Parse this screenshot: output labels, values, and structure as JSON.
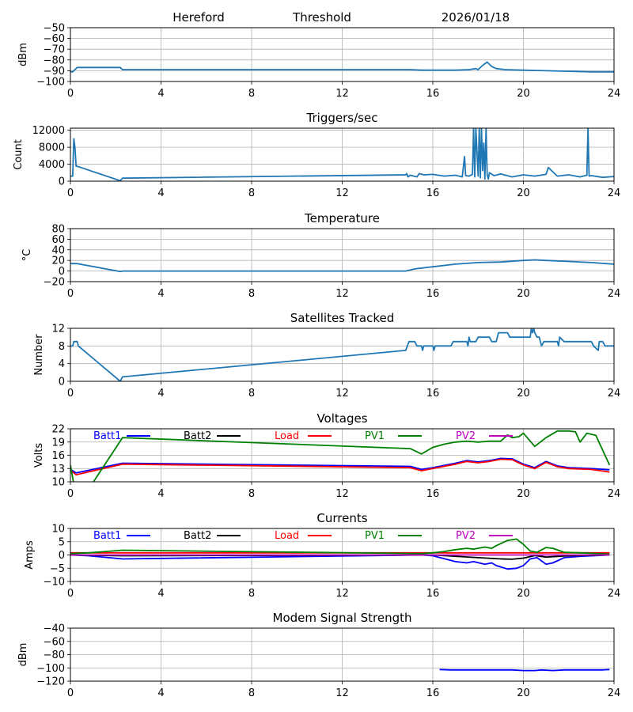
{
  "header": {
    "station": "Hereford",
    "report": "Threshold",
    "date": "2026/01/18"
  },
  "chart_data": [
    {
      "id": "threshold",
      "type": "line",
      "title": "",
      "xlabel": "",
      "ylabel": "dBm",
      "xlim": [
        0,
        24
      ],
      "ylim": [
        -100,
        -50
      ],
      "xticks": [
        0,
        4,
        8,
        12,
        16,
        20,
        24
      ],
      "yticks": [
        -100,
        -90,
        -80,
        -70,
        -60,
        -50
      ],
      "ytick_labels": [
        "−100",
        "−90",
        "−80",
        "−70",
        "−60",
        "−50"
      ],
      "grid": true,
      "series": [
        {
          "name": "Threshold",
          "color": "#1f77b4",
          "x": [
            0,
            0.1,
            0.2,
            0.3,
            2.2,
            2.3,
            14.8,
            15.0,
            15.5,
            16.0,
            17.0,
            17.6,
            17.9,
            18.0,
            18.2,
            18.4,
            18.6,
            18.8,
            19.2,
            20.0,
            21.0,
            22.0,
            23.0,
            24.0
          ],
          "y": [
            -91,
            -91,
            -89,
            -87,
            -87,
            -89,
            -89,
            -89,
            -89.5,
            -89.5,
            -89.5,
            -89,
            -88,
            -89,
            -85,
            -82,
            -86,
            -88,
            -89,
            -89.5,
            -90,
            -90.5,
            -91,
            -91
          ]
        }
      ]
    },
    {
      "id": "triggers",
      "type": "line",
      "title": "Triggers/sec",
      "ylabel": "Count",
      "xlim": [
        0,
        24
      ],
      "ylim": [
        0,
        12500
      ],
      "xticks": [
        0,
        4,
        8,
        12,
        16,
        20,
        24
      ],
      "yticks": [
        0,
        4000,
        8000,
        12000
      ],
      "ytick_labels": [
        "0",
        "4000",
        "8000",
        "12000"
      ],
      "grid": true,
      "series": [
        {
          "name": "Triggers",
          "color": "#1f77b4",
          "x": [
            0,
            0.1,
            0.15,
            0.2,
            0.25,
            0.3,
            2.2,
            2.3,
            14.8,
            14.85,
            14.9,
            15.0,
            15.3,
            15.4,
            15.6,
            16.0,
            16.5,
            17.0,
            17.3,
            17.4,
            17.45,
            17.6,
            17.75,
            17.8,
            17.85,
            17.9,
            18.0,
            18.05,
            18.1,
            18.15,
            18.2,
            18.25,
            18.3,
            18.35,
            18.4,
            18.45,
            18.5,
            18.7,
            19.0,
            19.5,
            20.0,
            20.5,
            21.0,
            21.1,
            21.5,
            22.0,
            22.5,
            22.8,
            22.85,
            22.9,
            23.0,
            23.5,
            24.0
          ],
          "y": [
            1200,
            1200,
            10000,
            8000,
            3500,
            3500,
            100,
            700,
            1500,
            1800,
            1000,
            1400,
            1000,
            1800,
            1500,
            1600,
            1200,
            1400,
            1000,
            5800,
            1300,
            1200,
            1600,
            12500,
            1000,
            12500,
            1200,
            12500,
            800,
            12500,
            2500,
            9000,
            500,
            12500,
            1500,
            500,
            2000,
            1300,
            1700,
            1000,
            1500,
            1200,
            1600,
            3200,
            1200,
            1500,
            1000,
            1400,
            12500,
            1200,
            1300,
            900,
            1100
          ]
        }
      ]
    },
    {
      "id": "temperature",
      "type": "line",
      "title": "Temperature",
      "ylabel": "°C",
      "xlim": [
        0,
        24
      ],
      "ylim": [
        -20,
        80
      ],
      "xticks": [
        0,
        4,
        8,
        12,
        16,
        20,
        24
      ],
      "yticks": [
        -20,
        0,
        20,
        40,
        60,
        80
      ],
      "ytick_labels": [
        "−20",
        "0",
        "20",
        "40",
        "60",
        "80"
      ],
      "grid": true,
      "series": [
        {
          "name": "Temperature",
          "color": "#1f77b4",
          "x": [
            0,
            0.3,
            2.2,
            2.3,
            14.8,
            15.2,
            16.0,
            17.0,
            18.0,
            19.0,
            20.0,
            20.5,
            21.0,
            22.0,
            23.0,
            24.0
          ],
          "y": [
            14,
            14,
            -1,
            0,
            0,
            4,
            8,
            13,
            16,
            17,
            20,
            21,
            20,
            18,
            16,
            13
          ]
        }
      ]
    },
    {
      "id": "satellites",
      "type": "line",
      "title": "Satellites Tracked",
      "ylabel": "Number",
      "xlim": [
        0,
        24
      ],
      "ylim": [
        0,
        12
      ],
      "xticks": [
        0,
        4,
        8,
        12,
        16,
        20,
        24
      ],
      "yticks": [
        0,
        4,
        8,
        12
      ],
      "ytick_labels": [
        "0",
        "4",
        "8",
        "12"
      ],
      "grid": true,
      "series": [
        {
          "name": "Satellites",
          "color": "#1f77b4",
          "x": [
            0,
            0.1,
            0.15,
            0.3,
            0.35,
            2.2,
            2.3,
            14.8,
            14.95,
            15.2,
            15.3,
            15.5,
            15.55,
            15.6,
            16.0,
            16.05,
            16.1,
            16.8,
            16.9,
            17.5,
            17.55,
            17.6,
            17.65,
            17.9,
            18.0,
            18.5,
            18.6,
            18.8,
            18.9,
            19.3,
            19.4,
            20.3,
            20.35,
            20.4,
            20.45,
            20.5,
            20.6,
            20.7,
            20.8,
            20.9,
            21.0,
            21.5,
            21.55,
            21.6,
            21.8,
            21.9,
            23.0,
            23.1,
            23.3,
            23.35,
            23.5,
            23.6,
            24.0
          ],
          "y": [
            8,
            8,
            9,
            9,
            8,
            0,
            1,
            7,
            9,
            9,
            8,
            8,
            7,
            8,
            8,
            7,
            8,
            8,
            9,
            9,
            8,
            10,
            9,
            9,
            10,
            10,
            9,
            9,
            11,
            11,
            10,
            10,
            12,
            11,
            12,
            11,
            10,
            10,
            8,
            9,
            9,
            9,
            8,
            10,
            9,
            9,
            9,
            8,
            7,
            9,
            9,
            8,
            8
          ]
        }
      ]
    },
    {
      "id": "voltages",
      "type": "line",
      "title": "Voltages",
      "ylabel": "Volts",
      "xlim": [
        0,
        24
      ],
      "ylim": [
        10,
        22
      ],
      "xticks": [
        0,
        4,
        8,
        12,
        16,
        20,
        24
      ],
      "yticks": [
        10,
        13,
        16,
        19,
        22
      ],
      "ytick_labels": [
        "10",
        "13",
        "16",
        "19",
        "22"
      ],
      "grid": true,
      "legend": "top",
      "series": [
        {
          "name": "Batt1",
          "color": "#0000ff",
          "x": [
            0,
            0.25,
            2.3,
            15.0,
            15.5,
            16.0,
            17.0,
            17.5,
            18.0,
            18.5,
            19.0,
            19.5,
            20.0,
            20.5,
            21.0,
            21.5,
            22.0,
            23.0,
            23.8
          ],
          "y": [
            12.8,
            12.0,
            14.2,
            13.5,
            12.8,
            13.2,
            14.2,
            14.8,
            14.5,
            14.8,
            15.3,
            15.2,
            14.0,
            13.2,
            14.6,
            13.6,
            13.2,
            13.0,
            12.7
          ]
        },
        {
          "name": "Batt2",
          "color": "#000000",
          "x": [],
          "y": []
        },
        {
          "name": "Load",
          "color": "#ff0000",
          "x": [
            0,
            0.25,
            2.3,
            15.0,
            15.5,
            16.0,
            17.0,
            17.5,
            18.0,
            18.5,
            19.0,
            19.5,
            20.0,
            20.5,
            21.0,
            21.5,
            22.0,
            23.0,
            23.8
          ],
          "y": [
            12.6,
            11.6,
            14.0,
            13.2,
            12.5,
            13.0,
            14.0,
            14.6,
            14.3,
            14.6,
            15.1,
            15.0,
            13.8,
            13.0,
            14.4,
            13.4,
            13.0,
            12.8,
            12.2
          ]
        },
        {
          "name": "PV1",
          "color": "#008000",
          "x": [
            0,
            0.2,
            0.7,
            2.3,
            15.0,
            15.5,
            16.0,
            16.5,
            17.0,
            17.5,
            18.0,
            18.5,
            19.0,
            19.3,
            19.5,
            19.8,
            20.0,
            20.5,
            21.0,
            21.5,
            22.0,
            22.3,
            22.5,
            22.8,
            23.2,
            23.8
          ],
          "y": [
            13.8,
            8.0,
            7.5,
            20.0,
            17.5,
            16.3,
            17.8,
            18.5,
            19.0,
            19.2,
            19.0,
            19.2,
            19.2,
            20.6,
            20.0,
            20.2,
            21.0,
            18.0,
            20.0,
            21.5,
            21.5,
            21.3,
            19.0,
            21.0,
            20.5,
            13.8
          ]
        },
        {
          "name": "PV2",
          "color": "#bf00bf",
          "x": [],
          "y": []
        }
      ]
    },
    {
      "id": "currents",
      "type": "line",
      "title": "Currents",
      "ylabel": "Amps",
      "xlim": [
        0,
        24
      ],
      "ylim": [
        -10,
        10
      ],
      "xticks": [
        0,
        4,
        8,
        12,
        16,
        20,
        24
      ],
      "yticks": [
        -10,
        -5,
        0,
        5,
        10
      ],
      "ytick_labels": [
        "−10",
        "−5",
        "0",
        "5",
        "10"
      ],
      "grid": true,
      "legend": "top",
      "series": [
        {
          "name": "Batt1",
          "color": "#0000ff",
          "x": [
            0,
            0.8,
            2.3,
            15.5,
            16.0,
            17.0,
            17.5,
            17.8,
            18.3,
            18.6,
            18.8,
            19.3,
            19.7,
            20.0,
            20.3,
            20.6,
            21.0,
            21.3,
            21.8,
            22.5,
            23.8
          ],
          "y": [
            0,
            -0.3,
            -1.5,
            0,
            -0.3,
            -2.5,
            -3.0,
            -2.5,
            -3.5,
            -3.0,
            -4.0,
            -5.3,
            -5.0,
            -4.0,
            -1.5,
            -1.0,
            -3.5,
            -3.0,
            -1.0,
            -0.5,
            0
          ]
        },
        {
          "name": "Batt2",
          "color": "#000000",
          "x": [
            0,
            2.3,
            16.0,
            18.0,
            19.0,
            19.5,
            20.0,
            20.5,
            21.0,
            22.0,
            23.8
          ],
          "y": [
            0,
            -0.3,
            0,
            -1.0,
            -1.5,
            -1.6,
            -1.2,
            -0.2,
            -0.8,
            -0.3,
            0
          ]
        },
        {
          "name": "Load",
          "color": "#ff0000",
          "x": [
            0,
            23.8
          ],
          "y": [
            0.8,
            0.8
          ]
        },
        {
          "name": "PV1",
          "color": "#008000",
          "x": [
            0,
            0.8,
            2.3,
            15.5,
            16.0,
            16.5,
            17.0,
            17.5,
            17.8,
            18.3,
            18.6,
            18.8,
            19.3,
            19.7,
            20.0,
            20.3,
            20.6,
            21.0,
            21.3,
            21.8,
            22.5,
            23.8
          ],
          "y": [
            0.5,
            0.8,
            1.8,
            0.5,
            0.8,
            1.3,
            2.0,
            2.5,
            2.2,
            3.0,
            2.5,
            3.5,
            5.5,
            6.0,
            4.0,
            1.5,
            1.0,
            2.8,
            2.5,
            1.0,
            0.8,
            0.3
          ]
        },
        {
          "name": "PV2",
          "color": "#bf00bf",
          "x": [
            0,
            23.8
          ],
          "y": [
            0,
            0
          ]
        }
      ]
    },
    {
      "id": "modem",
      "type": "line",
      "title": "Modem Signal Strength",
      "ylabel": "dBm",
      "xlim": [
        0,
        24
      ],
      "ylim": [
        -120,
        -40
      ],
      "xticks": [
        0,
        4,
        8,
        12,
        16,
        20,
        24
      ],
      "yticks": [
        -120,
        -100,
        -80,
        -60,
        -40
      ],
      "ytick_labels": [
        "−120",
        "−100",
        "−80",
        "−60",
        "−40"
      ],
      "grid": true,
      "series": [
        {
          "name": "Modem",
          "color": "#0000ff",
          "x": [
            16.3,
            16.8,
            19.0,
            19.5,
            20.0,
            20.5,
            20.8,
            21.3,
            21.8,
            23.5,
            23.8
          ],
          "y": [
            -102.5,
            -103,
            -103,
            -103,
            -104,
            -104,
            -103,
            -104,
            -103,
            -103,
            -102.5
          ]
        }
      ]
    }
  ]
}
